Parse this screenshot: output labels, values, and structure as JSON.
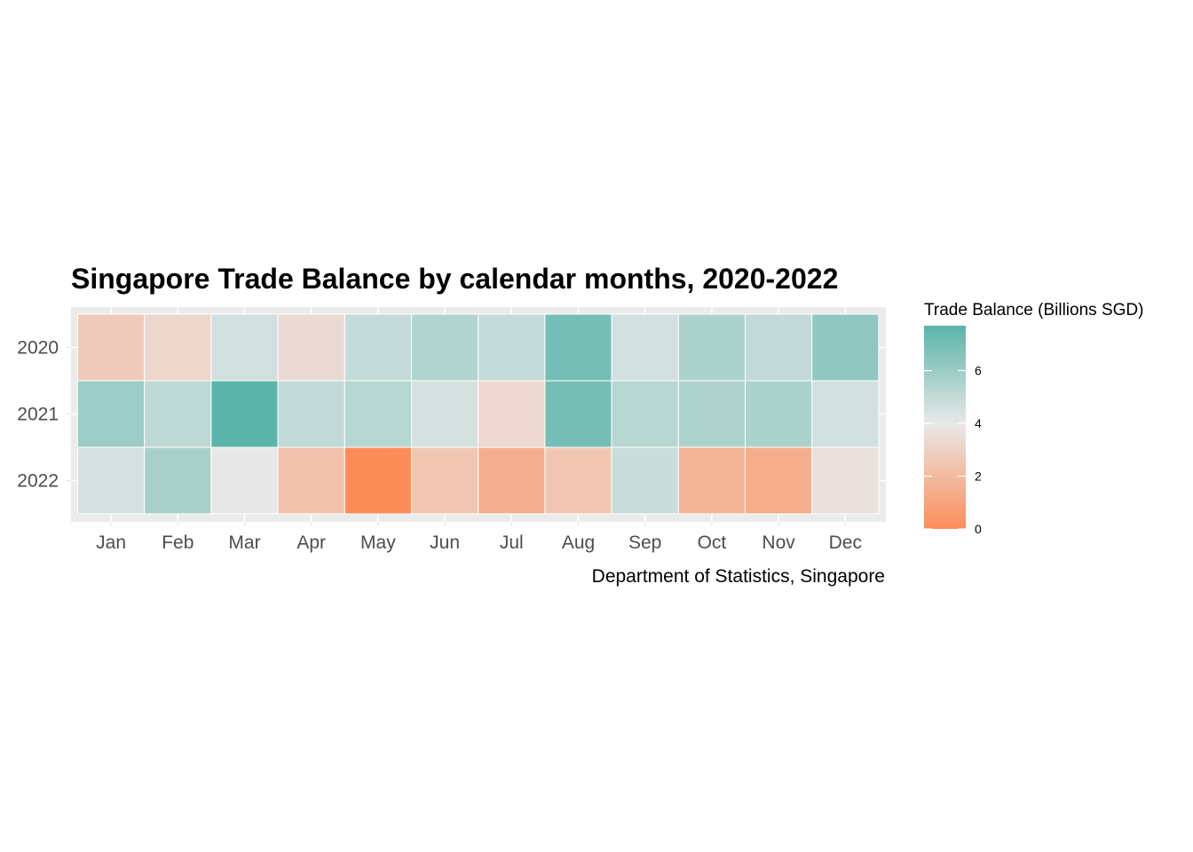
{
  "chart_data": {
    "type": "heatmap",
    "title": "Singapore Trade Balance by calendar months, 2020-2022",
    "caption": "Department of Statistics, Singapore",
    "xlabel": "",
    "ylabel": "",
    "x_categories": [
      "Jan",
      "Feb",
      "Mar",
      "Apr",
      "May",
      "Jun",
      "Jul",
      "Aug",
      "Sep",
      "Oct",
      "Nov",
      "Dec"
    ],
    "y_categories": [
      "2020",
      "2021",
      "2022"
    ],
    "values": [
      [
        2.7,
        3.2,
        4.6,
        3.4,
        4.9,
        5.4,
        4.9,
        7.0,
        4.6,
        5.6,
        5.0,
        6.3
      ],
      [
        6.0,
        5.1,
        7.7,
        5.0,
        5.3,
        4.5,
        3.3,
        7.0,
        5.3,
        5.5,
        5.6,
        4.6
      ],
      [
        4.5,
        5.7,
        4.0,
        2.3,
        0.0,
        2.5,
        1.5,
        2.5,
        4.8,
        1.7,
        1.4,
        3.7
      ]
    ],
    "legend": {
      "title": "Trade Balance (Billions SGD)",
      "breaks": [
        0,
        2,
        4,
        6
      ],
      "break_labels": [
        "0",
        "2",
        "4",
        "6"
      ],
      "range": [
        0,
        7.7
      ],
      "midpoint": 4,
      "low_color": "#fc8d59",
      "mid_color": "#e8e8e8",
      "high_color": "#5ab4a9"
    },
    "panel_background": "#ebebeb",
    "grid_color": "#ffffff",
    "grid": true,
    "legend_position": "right"
  }
}
